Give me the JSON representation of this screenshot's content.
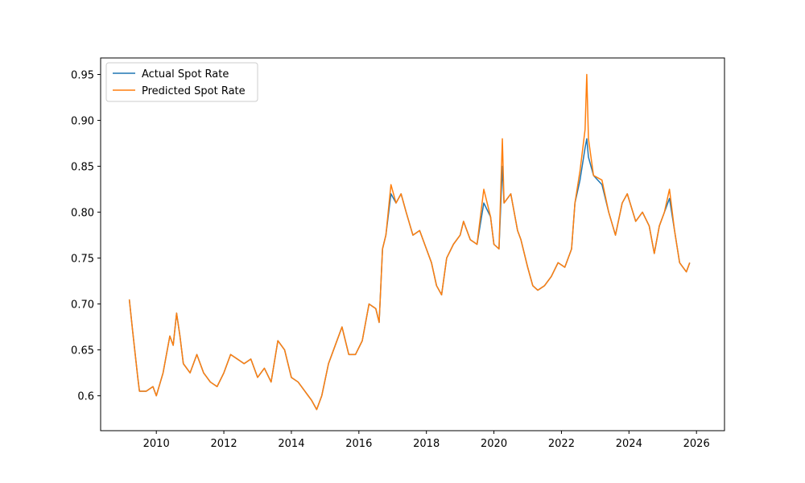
{
  "chart_data": {
    "type": "line",
    "legend": "upper left",
    "grid": false,
    "x": [
      2009.2,
      2009.3,
      2009.45,
      2009.5,
      2009.7,
      2009.9,
      2010.0,
      2010.2,
      2010.4,
      2010.5,
      2010.6,
      2010.7,
      2010.8,
      2011.0,
      2011.2,
      2011.4,
      2011.6,
      2011.8,
      2012.0,
      2012.2,
      2012.4,
      2012.6,
      2012.8,
      2013.0,
      2013.2,
      2013.4,
      2013.6,
      2013.8,
      2014.0,
      2014.2,
      2014.4,
      2014.6,
      2014.75,
      2014.9,
      2015.1,
      2015.3,
      2015.5,
      2015.7,
      2015.9,
      2016.1,
      2016.3,
      2016.5,
      2016.6,
      2016.7,
      2016.8,
      2016.95,
      2017.1,
      2017.25,
      2017.4,
      2017.6,
      2017.8,
      2018.0,
      2018.15,
      2018.3,
      2018.45,
      2018.6,
      2018.8,
      2019.0,
      2019.1,
      2019.3,
      2019.5,
      2019.7,
      2019.9,
      2020.0,
      2020.15,
      2020.25,
      2020.3,
      2020.5,
      2020.7,
      2020.8,
      2021.0,
      2021.15,
      2021.3,
      2021.5,
      2021.7,
      2021.9,
      2022.1,
      2022.3,
      2022.4,
      2022.55,
      2022.7,
      2022.75,
      2022.8,
      2022.95,
      2023.2,
      2023.4,
      2023.6,
      2023.8,
      2023.95,
      2024.2,
      2024.4,
      2024.6,
      2024.75,
      2024.9,
      2025.05,
      2025.2,
      2025.35,
      2025.5,
      2025.6,
      2025.7,
      2025.8
    ],
    "series": [
      {
        "name": "Actual Spot Rate",
        "color": "#1f77b4",
        "values": [
          0.705,
          0.67,
          0.62,
          0.605,
          0.605,
          0.61,
          0.6,
          0.625,
          0.665,
          0.655,
          0.69,
          0.665,
          0.635,
          0.625,
          0.645,
          0.625,
          0.615,
          0.61,
          0.625,
          0.645,
          0.64,
          0.635,
          0.64,
          0.62,
          0.63,
          0.615,
          0.66,
          0.65,
          0.62,
          0.615,
          0.605,
          0.595,
          0.585,
          0.6,
          0.635,
          0.655,
          0.675,
          0.645,
          0.645,
          0.66,
          0.7,
          0.695,
          0.68,
          0.76,
          0.775,
          0.82,
          0.81,
          0.82,
          0.8,
          0.775,
          0.78,
          0.76,
          0.745,
          0.72,
          0.71,
          0.75,
          0.765,
          0.775,
          0.79,
          0.77,
          0.765,
          0.81,
          0.795,
          0.765,
          0.76,
          0.85,
          0.81,
          0.82,
          0.78,
          0.77,
          0.74,
          0.72,
          0.715,
          0.72,
          0.73,
          0.745,
          0.74,
          0.76,
          0.81,
          0.835,
          0.87,
          0.88,
          0.86,
          0.84,
          0.83,
          0.8,
          0.775,
          0.81,
          0.82,
          0.79,
          0.8,
          0.785,
          0.755,
          0.785,
          0.8,
          0.815,
          0.78,
          0.745,
          0.74,
          0.735,
          0.745
        ]
      },
      {
        "name": "Predicted Spot Rate",
        "color": "#ff7f0e",
        "values": [
          0.705,
          0.67,
          0.62,
          0.605,
          0.605,
          0.61,
          0.6,
          0.625,
          0.665,
          0.655,
          0.69,
          0.665,
          0.635,
          0.625,
          0.645,
          0.625,
          0.615,
          0.61,
          0.625,
          0.645,
          0.64,
          0.635,
          0.64,
          0.62,
          0.63,
          0.615,
          0.66,
          0.65,
          0.62,
          0.615,
          0.605,
          0.595,
          0.585,
          0.6,
          0.635,
          0.655,
          0.675,
          0.645,
          0.645,
          0.66,
          0.7,
          0.695,
          0.68,
          0.76,
          0.775,
          0.83,
          0.81,
          0.82,
          0.8,
          0.775,
          0.78,
          0.76,
          0.745,
          0.72,
          0.71,
          0.75,
          0.765,
          0.775,
          0.79,
          0.77,
          0.765,
          0.825,
          0.795,
          0.765,
          0.76,
          0.88,
          0.81,
          0.82,
          0.78,
          0.77,
          0.74,
          0.72,
          0.715,
          0.72,
          0.73,
          0.745,
          0.74,
          0.76,
          0.81,
          0.845,
          0.89,
          0.95,
          0.88,
          0.84,
          0.835,
          0.8,
          0.775,
          0.81,
          0.82,
          0.79,
          0.8,
          0.785,
          0.755,
          0.785,
          0.8,
          0.825,
          0.78,
          0.745,
          0.74,
          0.735,
          0.745
        ]
      }
    ],
    "xlim": [
      2008.35,
      2026.83
    ],
    "xticks": [
      2010,
      2012,
      2014,
      2016,
      2018,
      2020,
      2022,
      2024,
      2026
    ],
    "ylim": [
      0.562,
      0.968
    ],
    "yticks": [
      0.6,
      0.65,
      {
        "value": 0.7,
        "label": "0.70"
      },
      0.75,
      {
        "value": 0.8,
        "label": "0.80"
      },
      0.85,
      {
        "value": 0.9,
        "label": "0.90"
      },
      0.95
    ]
  }
}
